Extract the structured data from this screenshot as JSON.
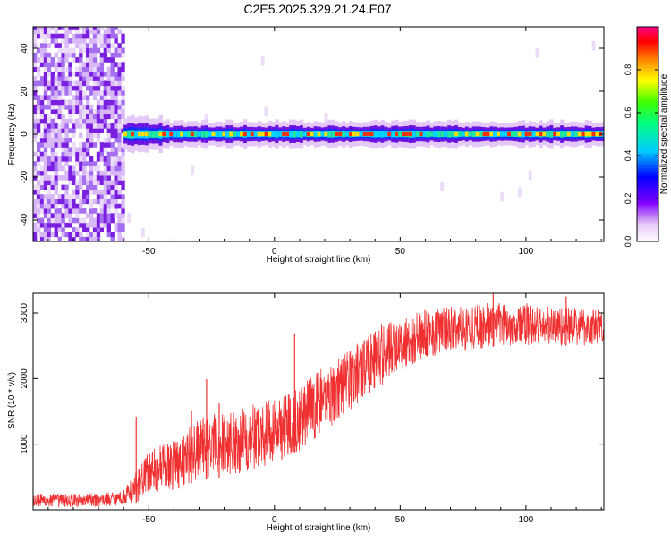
{
  "title": "C2E5.2025.329.21.24.E07",
  "chart_data": [
    {
      "type": "heatmap",
      "xlabel": "Height of straight line (km)",
      "ylabel": "Frequency (Hz)",
      "xlim": [
        -96,
        131
      ],
      "ylim": [
        -50,
        50
      ],
      "xticks": [
        -50,
        0,
        50,
        100
      ],
      "yticks": [
        -40,
        -20,
        0,
        20,
        40
      ],
      "colorbar": {
        "label": "Normalized spectral amplitude",
        "range": [
          0,
          1
        ],
        "ticks": [
          "0.0",
          "0.2",
          "0.4",
          "0.6",
          "0.8"
        ]
      },
      "description_values": {
        "noise_region_x": [
          -96,
          -60
        ],
        "onset_x": -60,
        "signal_frequency_hz": 0
      }
    },
    {
      "type": "line",
      "xlabel": "Height of straight line (km)",
      "ylabel": "SNR (10 * v/v)",
      "xlim": [
        -96,
        131
      ],
      "ylim": [
        0,
        3300
      ],
      "xticks": [
        -50,
        0,
        50,
        100
      ],
      "yticks": [
        1000,
        2000,
        3000
      ],
      "color": "#f03030",
      "series_envelope": {
        "x": [
          -96,
          -70,
          -60,
          -55,
          -50,
          -40,
          -30,
          -20,
          -10,
          0,
          10,
          20,
          30,
          40,
          50,
          60,
          70,
          80,
          90,
          100,
          110,
          120,
          131
        ],
        "low": [
          30,
          40,
          80,
          100,
          250,
          300,
          450,
          500,
          600,
          700,
          900,
          1200,
          1500,
          1800,
          2100,
          2300,
          2400,
          2450,
          2500,
          2500,
          2500,
          2500,
          2500
        ],
        "high": [
          250,
          250,
          300,
          600,
          900,
          1100,
          1400,
          1500,
          1600,
          1700,
          1900,
          2200,
          2500,
          2800,
          2950,
          3050,
          3100,
          3150,
          3150,
          3150,
          3100,
          3100,
          3050
        ]
      },
      "spikes": [
        {
          "x": -55,
          "y": 1420
        },
        {
          "x": -33,
          "y": 1500
        },
        {
          "x": -27,
          "y": 1990
        },
        {
          "x": -22,
          "y": 1620
        },
        {
          "x": 8,
          "y": 2690
        },
        {
          "x": 87,
          "y": 3300
        },
        {
          "x": 116,
          "y": 3250
        }
      ]
    }
  ]
}
